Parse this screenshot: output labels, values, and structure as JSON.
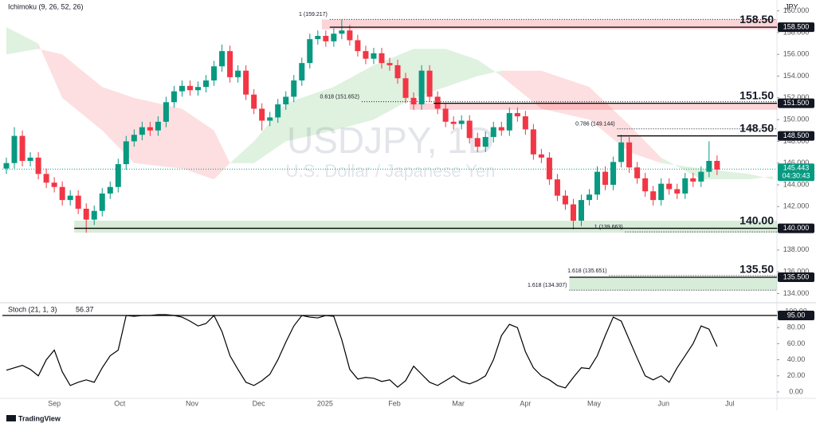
{
  "brand": "TradingView",
  "chart_data": [
    {
      "type": "candlestick",
      "title": "USDJPY, 1D",
      "subtitle": "U.S. Dollar / Japanese Yen",
      "indicator": "Ichimoku (9, 26, 52, 26)",
      "currency": "JPY",
      "up_color": "#089981",
      "down_color": "#f23645",
      "open": [
        145.5,
        146.0,
        148.5,
        146.2,
        146.5,
        145.0,
        144.2,
        143.8,
        142.6,
        143.0,
        141.8,
        140.8,
        141.6,
        143.2,
        143.8,
        145.9,
        148.0,
        148.6,
        149.3,
        149.0,
        149.8,
        151.6,
        152.6,
        153.1,
        152.7,
        153.0,
        153.6,
        154.9,
        156.3,
        153.9,
        154.5,
        152.3,
        151.0,
        149.9,
        150.2,
        151.4,
        152.1,
        153.6,
        155.2,
        157.4,
        157.7,
        157.2,
        157.9,
        158.2,
        157.3,
        156.3,
        155.6,
        156.1,
        155.2,
        155.0,
        153.8,
        152.0,
        151.4,
        154.5,
        152.1,
        151.0,
        149.8,
        149.6,
        149.9,
        148.3,
        147.5,
        148.4,
        149.3,
        149.0,
        150.6,
        150.3,
        149.1,
        146.8,
        146.5,
        144.5,
        143.0,
        142.2,
        140.7,
        142.6,
        143.1,
        145.2,
        144.0,
        146.1,
        147.9,
        145.6,
        144.6,
        143.4,
        142.6,
        144.1,
        143.6,
        143.2,
        144.6,
        144.3,
        145.2,
        146.2
      ],
      "high": [
        146.5,
        149.3,
        149.0,
        147.0,
        147.0,
        145.5,
        144.7,
        144.3,
        143.5,
        143.5,
        142.3,
        142.1,
        143.7,
        144.3,
        146.4,
        148.5,
        149.1,
        149.8,
        149.8,
        150.3,
        152.1,
        153.1,
        153.6,
        153.6,
        153.5,
        154.1,
        155.4,
        156.9,
        156.8,
        155.0,
        155.0,
        152.8,
        151.5,
        150.7,
        151.9,
        152.6,
        154.1,
        155.7,
        157.9,
        158.2,
        158.2,
        158.4,
        159.2,
        158.7,
        157.8,
        156.8,
        156.6,
        156.6,
        155.7,
        155.5,
        154.3,
        152.5,
        155.0,
        155.0,
        152.6,
        151.5,
        150.3,
        150.4,
        150.4,
        148.8,
        148.9,
        149.8,
        149.8,
        151.1,
        151.1,
        150.8,
        149.6,
        147.3,
        147.0,
        145.0,
        143.5,
        142.7,
        143.1,
        143.6,
        145.7,
        145.7,
        146.6,
        148.6,
        148.4,
        146.1,
        145.1,
        143.9,
        144.6,
        144.6,
        144.1,
        145.1,
        145.1,
        145.7,
        148.0,
        146.7
      ],
      "low": [
        145.0,
        145.5,
        145.7,
        145.7,
        144.5,
        143.7,
        143.3,
        142.1,
        142.1,
        141.3,
        139.6,
        140.3,
        141.1,
        142.7,
        143.3,
        145.4,
        147.5,
        148.1,
        148.5,
        148.5,
        149.3,
        151.1,
        152.1,
        152.2,
        152.2,
        152.5,
        153.1,
        154.4,
        153.4,
        153.4,
        151.8,
        150.5,
        149.0,
        149.4,
        149.7,
        150.9,
        151.6,
        153.1,
        154.7,
        156.9,
        156.7,
        156.7,
        157.4,
        156.8,
        155.8,
        155.1,
        155.1,
        154.7,
        154.5,
        153.3,
        151.5,
        150.9,
        150.9,
        151.6,
        150.5,
        149.3,
        149.1,
        149.1,
        147.8,
        147.0,
        147.0,
        147.9,
        148.5,
        148.5,
        149.8,
        148.6,
        146.3,
        146.0,
        144.0,
        142.5,
        141.7,
        139.9,
        140.2,
        142.1,
        142.6,
        143.5,
        143.5,
        145.6,
        145.1,
        144.1,
        142.9,
        142.1,
        142.1,
        143.1,
        142.7,
        142.7,
        143.8,
        143.8,
        144.7,
        144.9
      ],
      "close": [
        146.0,
        148.5,
        146.2,
        146.5,
        145.0,
        144.2,
        143.8,
        142.6,
        143.0,
        141.8,
        140.8,
        141.6,
        143.2,
        143.8,
        145.9,
        148.0,
        148.6,
        149.3,
        149.0,
        149.8,
        151.6,
        152.6,
        153.1,
        152.7,
        153.0,
        153.6,
        154.9,
        156.3,
        153.9,
        154.5,
        152.3,
        151.0,
        149.9,
        150.2,
        151.4,
        152.1,
        153.6,
        155.2,
        157.4,
        157.7,
        157.2,
        157.9,
        158.2,
        157.3,
        156.3,
        155.6,
        156.1,
        155.2,
        155.0,
        153.8,
        152.0,
        151.4,
        154.5,
        152.1,
        151.0,
        149.8,
        149.6,
        149.9,
        148.3,
        147.5,
        148.4,
        149.3,
        149.0,
        150.6,
        150.3,
        149.1,
        146.8,
        146.5,
        144.5,
        143.0,
        142.2,
        140.7,
        142.6,
        143.1,
        145.2,
        144.0,
        146.1,
        147.9,
        145.6,
        144.6,
        143.4,
        142.6,
        144.1,
        143.6,
        143.2,
        144.6,
        144.3,
        145.2,
        146.2,
        145.4
      ],
      "cloud": {
        "x": [
          0,
          4,
          7,
          12,
          16,
          22,
          26,
          28,
          31,
          35,
          41,
          46,
          51,
          55,
          59,
          62,
          67,
          73,
          78,
          82,
          87,
          93,
          96
        ],
        "span_a": [
          158.5,
          157,
          152,
          149,
          146,
          145.5,
          144.5,
          146,
          148,
          151.5,
          153,
          155,
          156.5,
          156.5,
          155.5,
          154,
          151,
          150,
          147,
          146,
          145.5,
          145,
          144.5
        ],
        "span_b": [
          156,
          156.5,
          156,
          153,
          152,
          151,
          149,
          146,
          146,
          148,
          149,
          150,
          152,
          153,
          154,
          154.5,
          154.5,
          153,
          149.5,
          146.5,
          144.5,
          144.5,
          144.8
        ],
        "up_color": "rgba(76,175,80,0.18)",
        "down_color": "rgba(242,54,69,0.16)"
      },
      "zones": [
        {
          "from": 158.3,
          "to": 159.2,
          "start": 40,
          "color": "rgba(242,54,69,0.22)"
        },
        {
          "from": 150.9,
          "to": 151.5,
          "start": 51,
          "color": "rgba(242,54,69,0.22)"
        },
        {
          "from": 139.6,
          "to": 140.7,
          "start": 9,
          "color": "rgba(76,175,80,0.22)"
        },
        {
          "from": 134.3,
          "to": 135.5,
          "start": 71,
          "color": "rgba(76,175,80,0.22)"
        }
      ],
      "levels": [
        {
          "value": 158.5,
          "label": "158.50",
          "tag": "158.500",
          "start": 41
        },
        {
          "value": 151.5,
          "label": "151.50",
          "tag": "151.500",
          "start": 54
        },
        {
          "value": 148.5,
          "label": "148.50",
          "tag": "148.500",
          "start": 77
        },
        {
          "value": 140.0,
          "label": "140.00",
          "tag": "140.000",
          "start": 9
        },
        {
          "value": 135.5,
          "label": "135.50",
          "tag": "135.500",
          "start": 71
        }
      ],
      "fibs": [
        {
          "label": "1 (159.217)",
          "value": 159.217,
          "start": 41
        },
        {
          "label": "0.618 (151.652)",
          "value": 151.652,
          "start": 45
        },
        {
          "label": "0.786 (149.144)",
          "value": 149.144,
          "start": 77
        },
        {
          "label": "1 (139.663)",
          "value": 139.663,
          "start": 78
        },
        {
          "label": "1.618 (135.651)",
          "value": 135.651,
          "start": 76
        },
        {
          "label": "1.618 (134.307)",
          "value": 134.307,
          "start": 71
        }
      ],
      "last_price": {
        "value": 145.443,
        "label": "145.443",
        "countdown": "04:30:43",
        "color": "#089981"
      },
      "xlim": [
        0,
        97
      ],
      "ylim": [
        133.3,
        161.0
      ],
      "yticks": [
        {
          "value": 134,
          "label": "134.000"
        },
        {
          "value": 136,
          "label": "136.000"
        },
        {
          "value": 138,
          "label": "138.000"
        },
        {
          "value": 140,
          "label": "140.000"
        },
        {
          "value": 142,
          "label": "142.000"
        },
        {
          "value": 144,
          "label": "144.000"
        },
        {
          "value": 146,
          "label": "146.000"
        },
        {
          "value": 148,
          "label": "148.000"
        },
        {
          "value": 150,
          "label": "150.000"
        },
        {
          "value": 152,
          "label": "152.000"
        },
        {
          "value": 154,
          "label": "154.000"
        },
        {
          "value": 156,
          "label": "156.000"
        },
        {
          "value": 158,
          "label": "158.000"
        },
        {
          "value": 160,
          "label": "160.000"
        }
      ],
      "xticks": [
        {
          "value": 6.5,
          "label": "Sep"
        },
        {
          "value": 14.7,
          "label": "Oct"
        },
        {
          "value": 23.75,
          "label": "Nov"
        },
        {
          "value": 32.1,
          "label": "Dec"
        },
        {
          "value": 40.4,
          "label": "2025"
        },
        {
          "value": 49.1,
          "label": "Feb"
        },
        {
          "value": 57.1,
          "label": "Mar"
        },
        {
          "value": 65.5,
          "label": "Apr"
        },
        {
          "value": 74.1,
          "label": "May"
        },
        {
          "value": 82.8,
          "label": "Jun"
        },
        {
          "value": 91.1,
          "label": "Jul"
        }
      ]
    },
    {
      "type": "line",
      "title": "Stoch (21, 1, 3)",
      "color": "#000000",
      "values": [
        27,
        30,
        33,
        28,
        20,
        40,
        52,
        25,
        8,
        12,
        15,
        12,
        30,
        45,
        52,
        95,
        94,
        95,
        95,
        96,
        96,
        95,
        93,
        88,
        82,
        85,
        95,
        75,
        45,
        28,
        12,
        8,
        14,
        22,
        40,
        62,
        82,
        95,
        93,
        92,
        95,
        94,
        65,
        28,
        16,
        18,
        17,
        13,
        15,
        6,
        14,
        32,
        22,
        12,
        8,
        14,
        20,
        13,
        10,
        14,
        20,
        40,
        70,
        84,
        80,
        50,
        30,
        20,
        15,
        8,
        5,
        18,
        30,
        29,
        45,
        70,
        93,
        88,
        65,
        42,
        20,
        15,
        20,
        12,
        30,
        45,
        60,
        82,
        78,
        56.37
      ],
      "level": {
        "value": 95,
        "label": "95.00"
      },
      "xlim": [
        0,
        97
      ],
      "ylim": [
        -12.9,
        107.9
      ],
      "yticks": [
        {
          "value": 0,
          "label": "0.00"
        },
        {
          "value": 20,
          "label": "20.00"
        },
        {
          "value": 40,
          "label": "40.00"
        },
        {
          "value": 60,
          "label": "60.00"
        },
        {
          "value": 80,
          "label": "80.00"
        },
        {
          "value": 100,
          "label": "100.00"
        }
      ]
    }
  ]
}
